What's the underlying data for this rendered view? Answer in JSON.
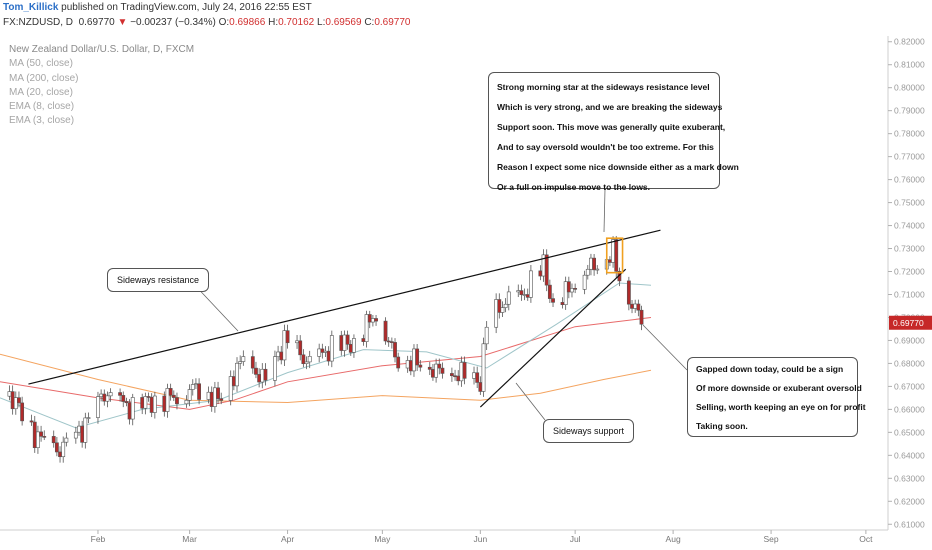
{
  "header": {
    "author": "Tom_Killick",
    "published": " published on TradingView.com, July 24, 2016 22:55 EST",
    "symbol": "FX:NZDUSD, D",
    "price": "0.69770",
    "change_arrow": "▼",
    "change": "−0.00237 (−0.34%)",
    "o_label": "O:",
    "o_value": "0.69866",
    "h_label": "H:",
    "h_value": "0.70162",
    "l_label": "L:",
    "l_value": "0.69569",
    "c_label": "C:",
    "c_value": "0.69770"
  },
  "legend": {
    "title": "New Zealand Dollar/U.S. Dollar, D, FXCM",
    "items": [
      "MA (50, close)",
      "MA (200, close)",
      "MA (20, close)",
      "EMA (8, close)",
      "EMA (3, close)"
    ]
  },
  "annotations": {
    "morning_star": [
      "Strong morning star at the sideways resistance level",
      "Which is very strong, and we are breaking the sideways",
      "Support soon. This move was generally quite exuberant,",
      "And to say oversold wouldn't be too extreme. For this",
      "Reason I expect some nice downside either as a mark down",
      "Or a full on impulse move to the lows."
    ],
    "gapped_down": [
      "Gapped down today, could be a sign",
      "Of more downside or exuberant oversold",
      "Selling, worth keeping an eye on for profit",
      "Taking soon."
    ],
    "resistance_label": "Sideways resistance",
    "support_label": "Sideways support"
  },
  "chart_data": {
    "type": "candlestick",
    "title": "New Zealand Dollar/U.S. Dollar, D, FXCM",
    "xlim": [
      "2016-01-01",
      "2016-10-08"
    ],
    "ylim": [
      0.6075,
      0.8225
    ],
    "y_ticks": [
      "0.82000",
      "0.81000",
      "0.80000",
      "0.79000",
      "0.78000",
      "0.77000",
      "0.76000",
      "0.75000",
      "0.74000",
      "0.73000",
      "0.72000",
      "0.71000",
      "0.70000",
      "0.69000",
      "0.68000",
      "0.67000",
      "0.66000",
      "0.65000",
      "0.64000",
      "0.63000",
      "0.62000",
      "0.61000"
    ],
    "x_ticks": [
      {
        "label": "Feb",
        "date": "2016-02-01"
      },
      {
        "label": "Mar",
        "date": "2016-03-01"
      },
      {
        "label": "Apr",
        "date": "2016-04-01"
      },
      {
        "label": "May",
        "date": "2016-05-01"
      },
      {
        "label": "Jun",
        "date": "2016-06-01"
      },
      {
        "label": "Jul",
        "date": "2016-07-01"
      },
      {
        "label": "Aug",
        "date": "2016-08-01"
      },
      {
        "label": "Sep",
        "date": "2016-09-01"
      },
      {
        "label": "Oct",
        "date": "2016-10-01"
      }
    ],
    "last_price": "0.69770",
    "anchors": [
      {
        "date": "2016-01-04",
        "close": 0.667
      },
      {
        "date": "2016-01-12",
        "close": 0.649
      },
      {
        "date": "2016-01-20",
        "close": 0.642
      },
      {
        "date": "2016-01-28",
        "close": 0.653
      },
      {
        "date": "2016-02-03",
        "close": 0.667
      },
      {
        "date": "2016-02-11",
        "close": 0.661
      },
      {
        "date": "2016-02-19",
        "close": 0.664
      },
      {
        "date": "2016-02-26",
        "close": 0.666
      },
      {
        "date": "2016-03-04",
        "close": 0.67
      },
      {
        "date": "2016-03-10",
        "close": 0.664
      },
      {
        "date": "2016-03-18",
        "close": 0.682
      },
      {
        "date": "2016-03-25",
        "close": 0.672
      },
      {
        "date": "2016-03-31",
        "close": 0.69
      },
      {
        "date": "2016-04-08",
        "close": 0.68
      },
      {
        "date": "2016-04-15",
        "close": 0.687
      },
      {
        "date": "2016-04-22",
        "close": 0.689
      },
      {
        "date": "2016-04-29",
        "close": 0.702
      },
      {
        "date": "2016-05-05",
        "close": 0.683
      },
      {
        "date": "2016-05-13",
        "close": 0.68
      },
      {
        "date": "2016-05-20",
        "close": 0.676
      },
      {
        "date": "2016-05-27",
        "close": 0.675
      },
      {
        "date": "2016-06-01",
        "close": 0.672
      },
      {
        "date": "2016-06-03",
        "close": 0.696
      },
      {
        "date": "2016-06-08",
        "close": 0.706
      },
      {
        "date": "2016-06-14",
        "close": 0.709
      },
      {
        "date": "2016-06-21",
        "close": 0.722
      },
      {
        "date": "2016-06-24",
        "close": 0.705
      },
      {
        "date": "2016-06-29",
        "close": 0.712
      },
      {
        "date": "2016-07-04",
        "close": 0.72
      },
      {
        "date": "2016-07-08",
        "close": 0.724
      },
      {
        "date": "2016-07-13",
        "close": 0.728
      },
      {
        "date": "2016-07-15",
        "close": 0.717
      },
      {
        "date": "2016-07-19",
        "close": 0.706
      },
      {
        "date": "2016-07-22",
        "close": 0.699
      }
    ],
    "ma_lines": [
      {
        "name": "MA (50, close)",
        "color": "#f4a460",
        "points": [
          [
            "2016-01-01",
            0.684
          ],
          [
            "2016-02-01",
            0.673
          ],
          [
            "2016-03-01",
            0.664
          ],
          [
            "2016-04-01",
            0.663
          ],
          [
            "2016-05-01",
            0.666
          ],
          [
            "2016-06-01",
            0.664
          ],
          [
            "2016-06-20",
            0.667
          ],
          [
            "2016-07-10",
            0.673
          ],
          [
            "2016-07-25",
            0.677
          ]
        ]
      },
      {
        "name": "MA (200, close)",
        "color": "#e86a6a",
        "points": [
          [
            "2016-01-01",
            0.672
          ],
          [
            "2016-02-01",
            0.665
          ],
          [
            "2016-03-01",
            0.66
          ],
          [
            "2016-03-15",
            0.664
          ],
          [
            "2016-04-01",
            0.672
          ],
          [
            "2016-05-01",
            0.679
          ],
          [
            "2016-06-01",
            0.683
          ],
          [
            "2016-07-01",
            0.696
          ],
          [
            "2016-07-25",
            0.7
          ]
        ]
      },
      {
        "name": "MA (20, close)",
        "color": "#9fc5c9",
        "points": [
          [
            "2016-01-01",
            0.665
          ],
          [
            "2016-01-25",
            0.652
          ],
          [
            "2016-02-15",
            0.66
          ],
          [
            "2016-03-10",
            0.664
          ],
          [
            "2016-04-01",
            0.676
          ],
          [
            "2016-04-25",
            0.686
          ],
          [
            "2016-05-15",
            0.685
          ],
          [
            "2016-06-03",
            0.678
          ],
          [
            "2016-06-25",
            0.697
          ],
          [
            "2016-07-15",
            0.715
          ],
          [
            "2016-07-25",
            0.714
          ]
        ]
      }
    ],
    "trendlines": [
      {
        "name": "Sideways resistance",
        "points": [
          [
            "2016-01-10",
            0.671
          ],
          [
            "2016-07-28",
            0.738
          ]
        ]
      },
      {
        "name": "Sideways support",
        "points": [
          [
            "2016-06-01",
            0.661
          ],
          [
            "2016-07-17",
            0.721
          ]
        ]
      }
    ],
    "highlight_box": {
      "dates": [
        "2016-07-11",
        "2016-07-16"
      ],
      "range": [
        0.7195,
        0.7345
      ]
    }
  }
}
